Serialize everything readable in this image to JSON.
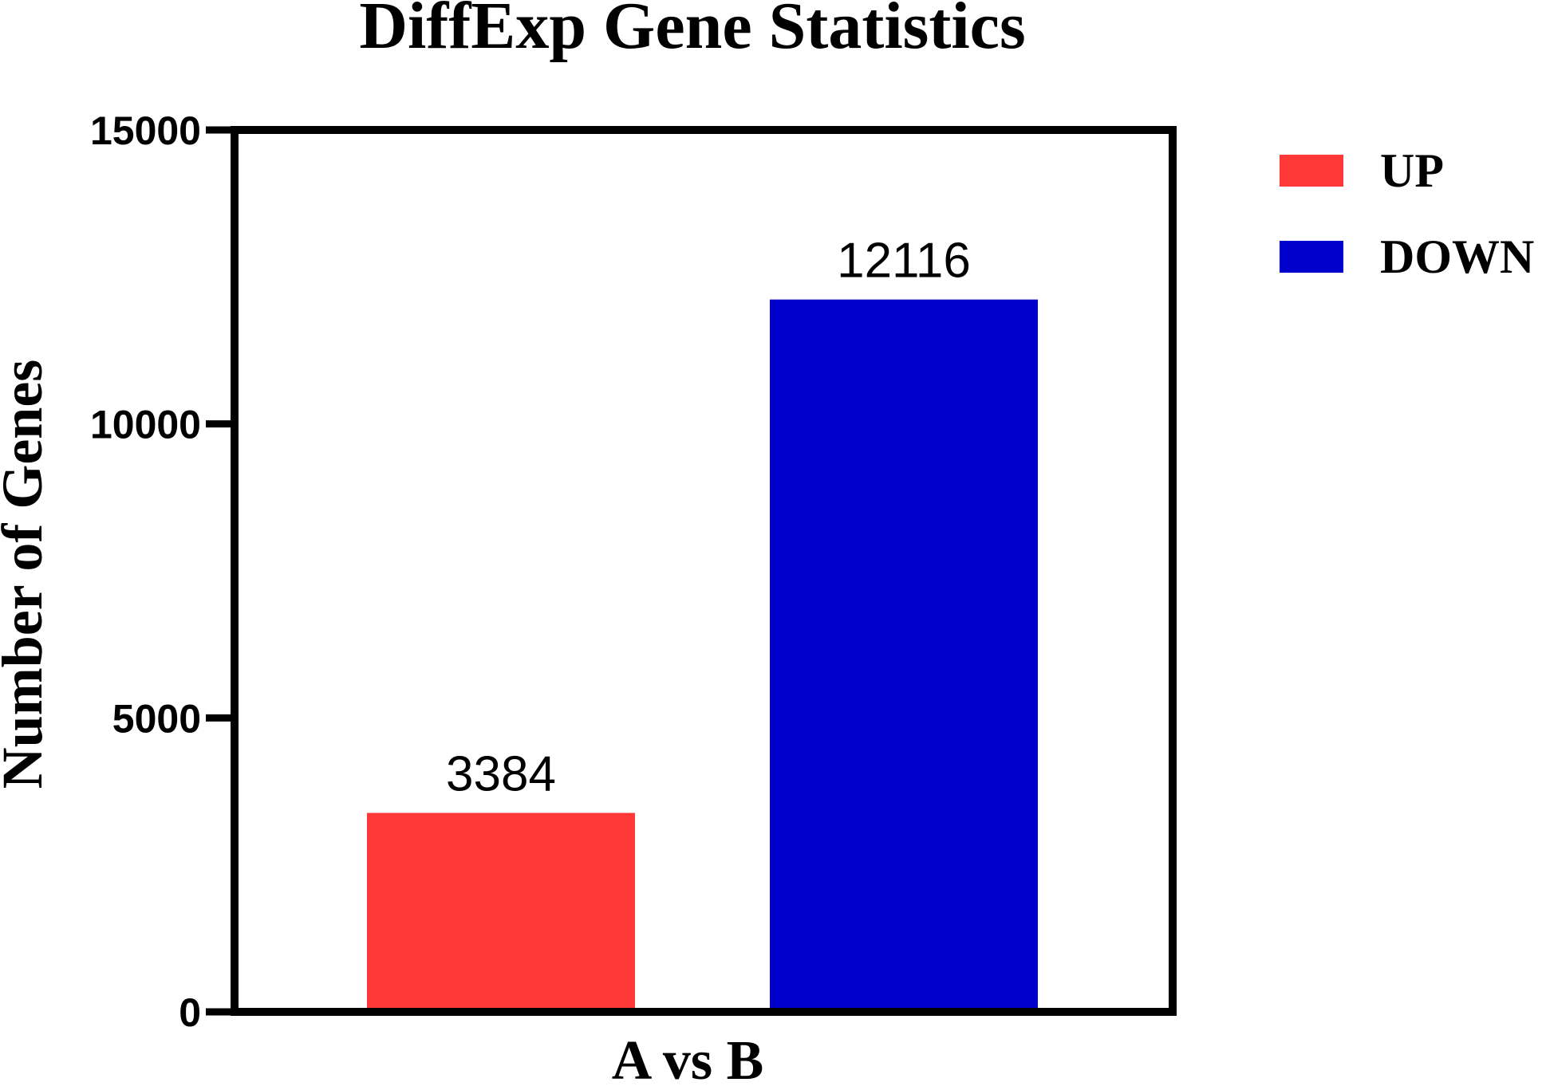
{
  "chart_data": {
    "type": "bar",
    "title": "DiffExp Gene Statistics",
    "xlabel": "",
    "ylabel": "Number of Genes",
    "categories": [
      "A vs B"
    ],
    "series": [
      {
        "name": "UP",
        "values": [
          3384
        ],
        "color": "#ff3838"
      },
      {
        "name": "DOWN",
        "values": [
          12116
        ],
        "color": "#0000cc"
      }
    ],
    "ylim": [
      0,
      15000
    ],
    "yticks": [
      0,
      5000,
      10000,
      15000
    ],
    "data_labels": [
      "3384",
      "12116"
    ],
    "legend_position": "top-right",
    "grid": false
  }
}
